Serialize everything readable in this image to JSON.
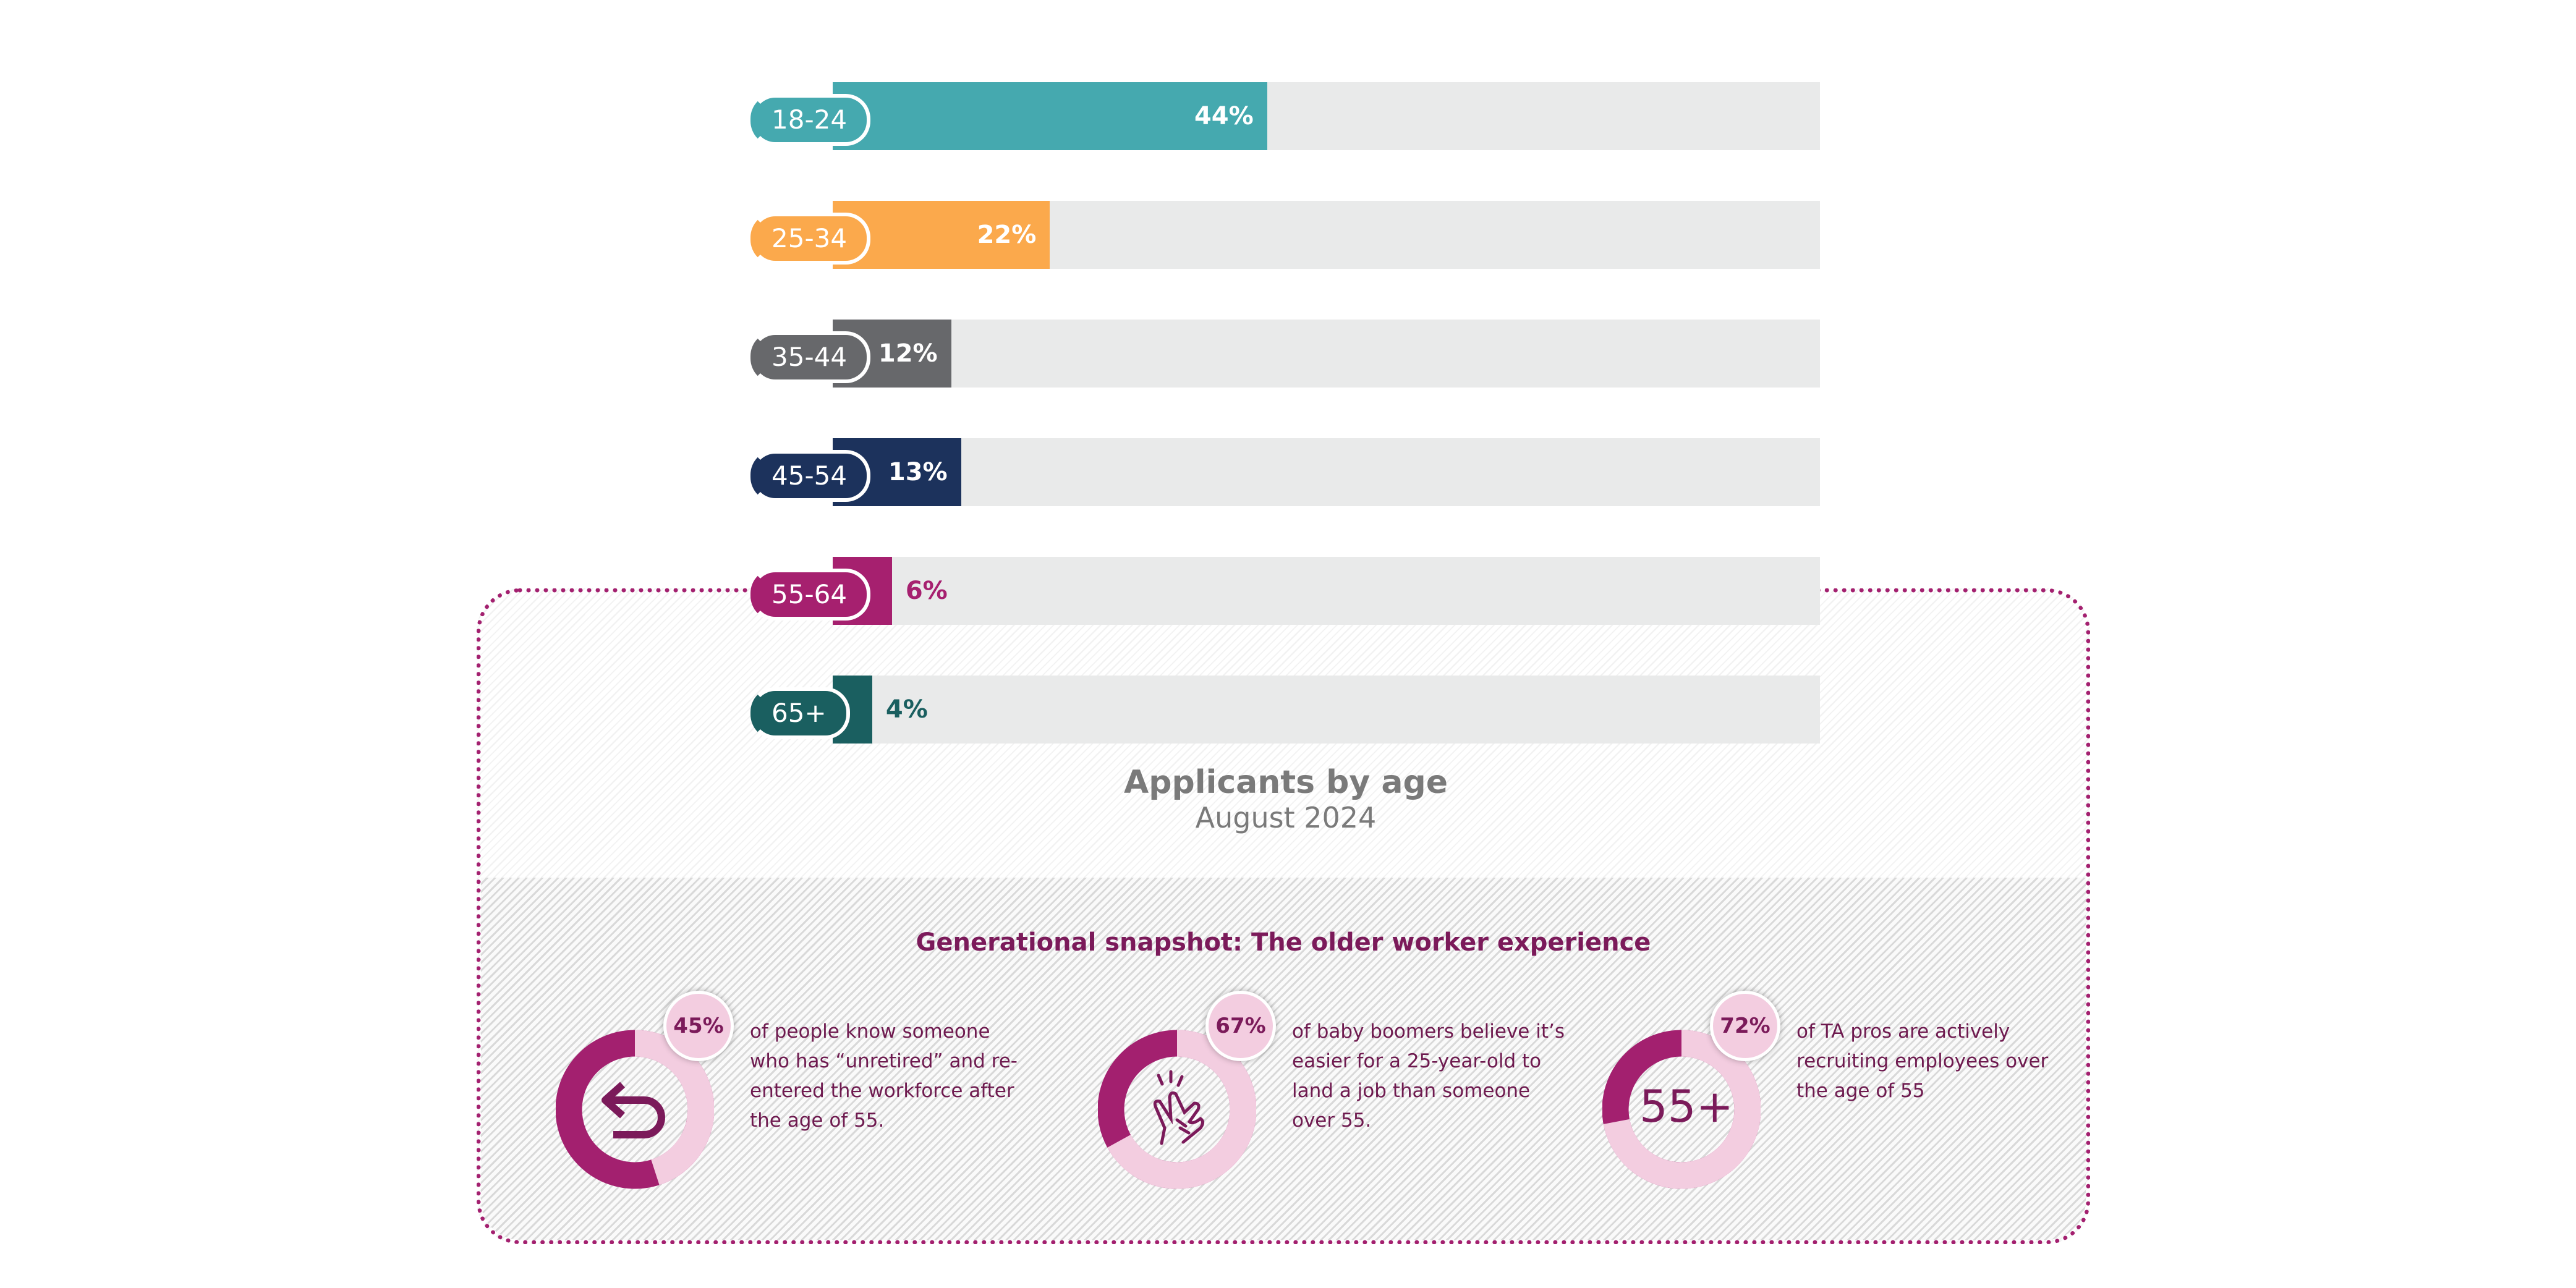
{
  "chart_data": {
    "type": "bar",
    "orientation": "horizontal",
    "title": "Applicants by age",
    "subtitle": "August 2024",
    "categories": [
      "18-24",
      "25-34",
      "35-44",
      "45-54",
      "55-64",
      "65+"
    ],
    "values": [
      44,
      22,
      12,
      13,
      6,
      4
    ],
    "value_labels": [
      "44%",
      "22%",
      "12%",
      "13%",
      "6%",
      "4%"
    ],
    "colors": [
      "#45a9af",
      "#fba94c",
      "#67686b",
      "#1c325c",
      "#a6206f",
      "#1a5f60"
    ],
    "xlim": [
      0,
      100
    ],
    "track_color": "#e9eaea",
    "grid": false
  },
  "snapshot": {
    "title": "Generational snapshot: The older worker experience",
    "stats": [
      {
        "percent": 45,
        "label": "45%",
        "icon": "return-arrow-icon",
        "text": "of people know someone who has “unretired” and re-entered the workforce after the age of 55."
      },
      {
        "percent": 67,
        "label": "67%",
        "icon": "hand-snap-icon",
        "text": "of baby boomers believe it’s easier for a 25-year-old to land a job than someone over 55."
      },
      {
        "percent": 72,
        "label": "72%",
        "icon": "text-55-plus",
        "icon_text": "55+",
        "text": "of TA pros are actively recruiting employees over the age of 55"
      }
    ],
    "colors": {
      "dark": "#a3206f",
      "light": "#f3cde0",
      "text": "#6e1a4f"
    }
  }
}
